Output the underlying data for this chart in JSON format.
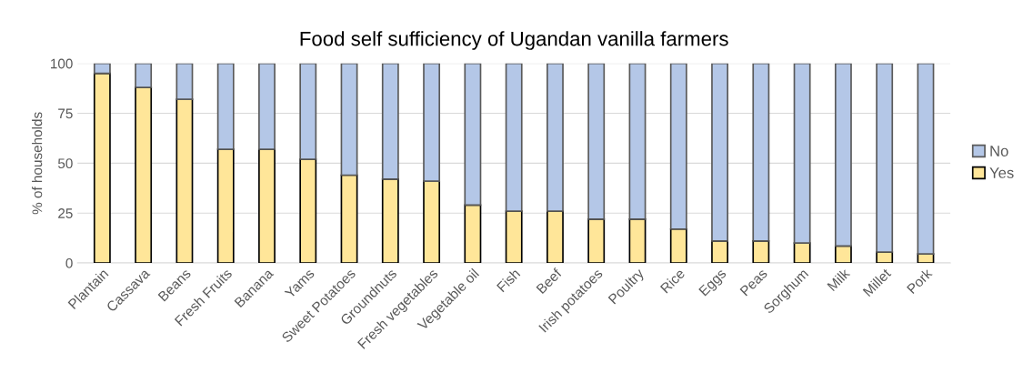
{
  "chart_data": {
    "type": "bar",
    "title": "Food self sufficiency of Ugandan vanilla farmers",
    "ylabel": "% of households",
    "categories": [
      "Plantain",
      "Cassava",
      "Beans",
      "Fresh Fruits",
      "Banana",
      "Yams",
      "Sweet Potatoes",
      "Groundnuts",
      "Fresh vegetables",
      "Vegetable oil",
      "Fish",
      "Beef",
      "Irish potatoes",
      "Poultry",
      "Rice",
      "Eggs",
      "Peas",
      "Sorghum",
      "Milk",
      "Millet",
      "Pork"
    ],
    "stacked": true,
    "series": [
      {
        "name": "Yes",
        "color": "#ffe699",
        "values": [
          95,
          88,
          82,
          57,
          57,
          52,
          44,
          42,
          41,
          29,
          26,
          26,
          22,
          22,
          17,
          11,
          11,
          10,
          8.5,
          5.5,
          4.5
        ]
      },
      {
        "name": "No",
        "color": "#b4c7e7",
        "values": [
          5,
          12,
          18,
          43,
          43,
          48,
          56,
          58,
          59,
          71,
          74,
          74,
          78,
          78,
          83,
          89,
          89,
          90,
          91.5,
          94.5,
          95.5
        ]
      }
    ],
    "ylim": [
      0,
      100
    ],
    "yticks": [
      0,
      25,
      50,
      75,
      100
    ],
    "grid": "y",
    "legend": "right"
  }
}
